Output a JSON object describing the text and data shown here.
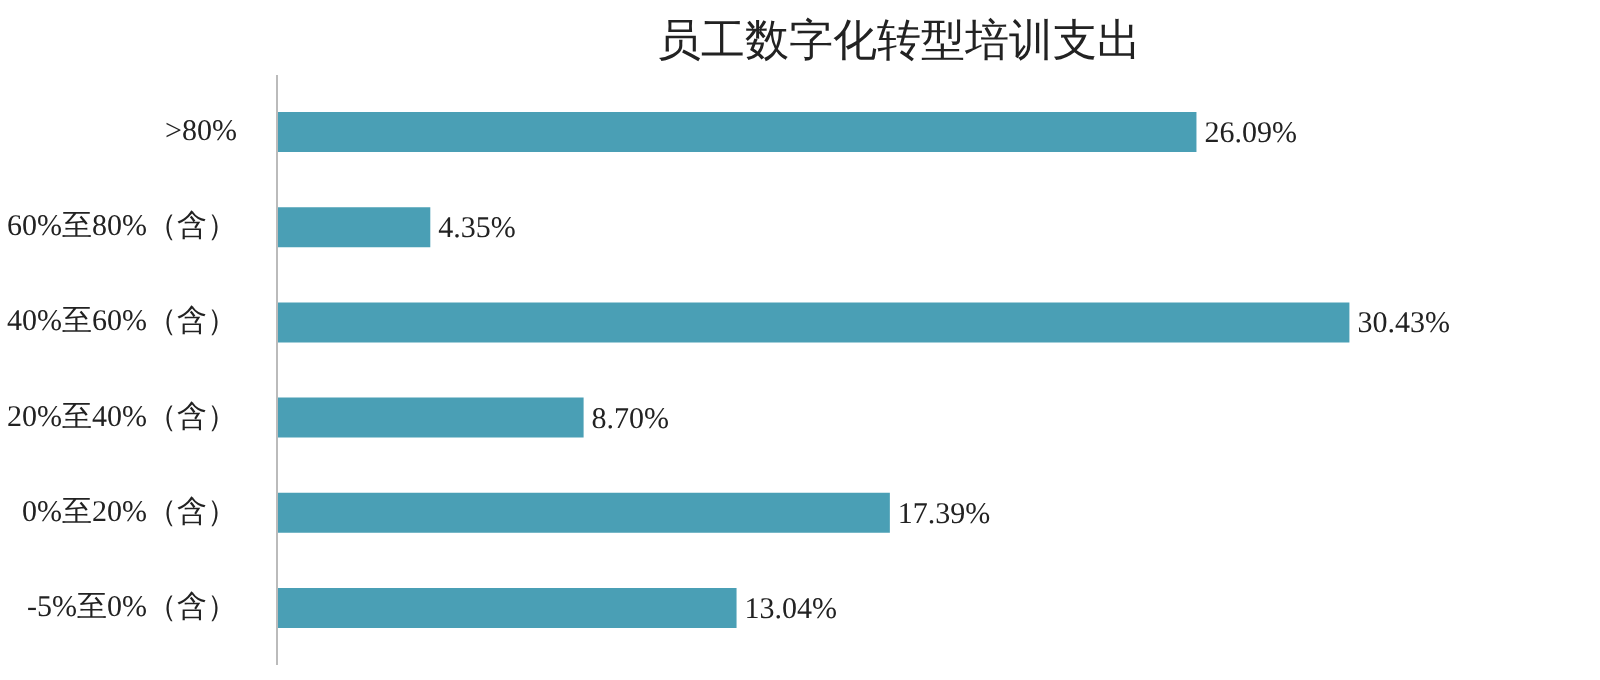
{
  "chart_data": {
    "type": "bar",
    "orientation": "horizontal",
    "title": "员工数字化转型培训支出",
    "categories": [
      ">80%",
      "60%至80%（含）",
      "40%至60%（含）",
      "20%至40%（含）",
      "0%至20%（含）",
      "-5%至0%（含）"
    ],
    "values": [
      26.09,
      4.35,
      30.43,
      8.7,
      17.39,
      13.04
    ],
    "value_labels": [
      "26.09%",
      "4.35%",
      "30.43%",
      "8.70%",
      "17.39%",
      "13.04%"
    ],
    "color": "#4a9fb5",
    "grid": false
  }
}
